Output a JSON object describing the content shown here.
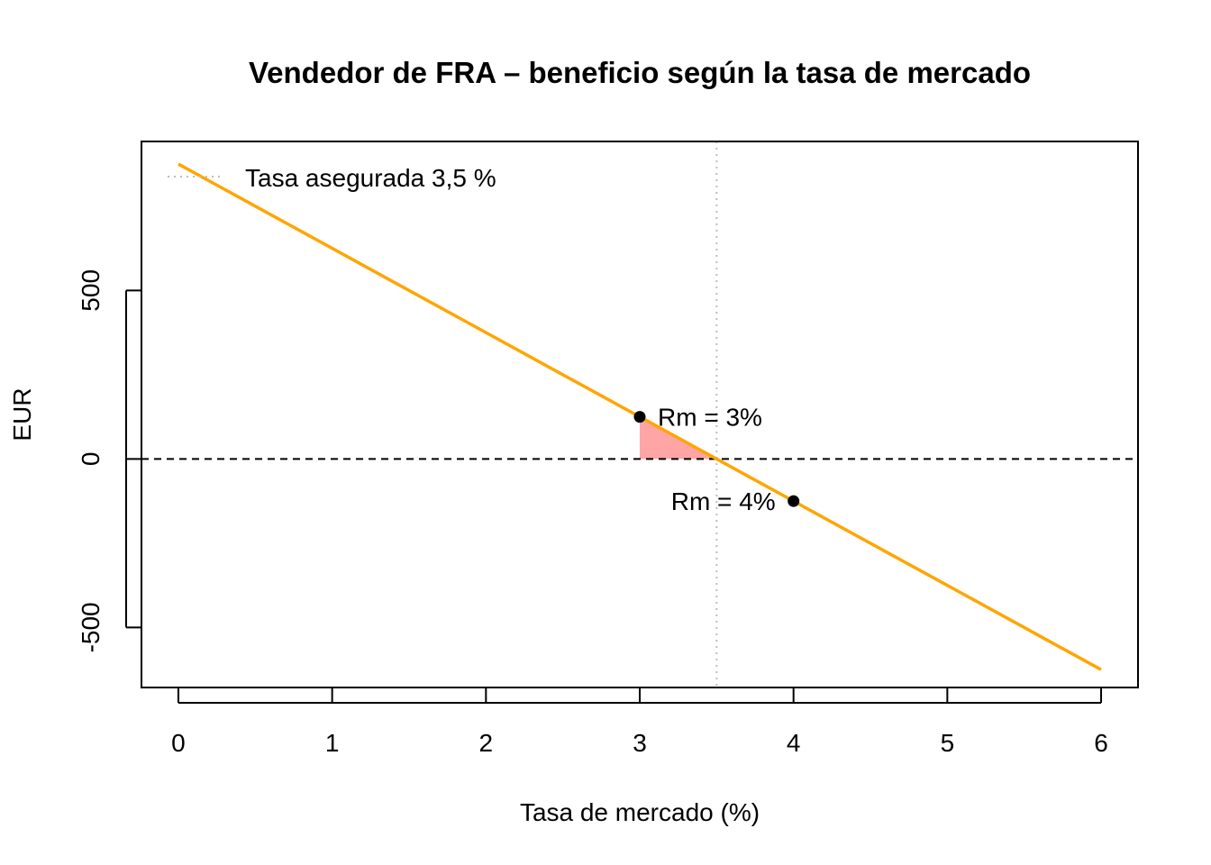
{
  "chart_data": {
    "type": "line",
    "title": "Vendedor de FRA – beneficio según la tasa de mercado",
    "xlabel": "Tasa de mercado (%)",
    "ylabel": "EUR",
    "xlim": [
      -0.24,
      6.24
    ],
    "ylim": [
      -678,
      942
    ],
    "xticks": [
      0,
      1,
      2,
      3,
      4,
      5,
      6
    ],
    "yticks": [
      -500,
      0,
      500
    ],
    "grid": false,
    "series": [
      {
        "color": "#FFA500",
        "x": [
          0,
          6
        ],
        "y": [
          875,
          -625
        ]
      }
    ],
    "reference_lines": {
      "horizontal_zero": {
        "y": 0,
        "style": "dashed",
        "color": "#000000"
      },
      "vertical_rate": {
        "x": 3.5,
        "style": "dotted",
        "color": "#BEBEBE"
      }
    },
    "shaded_region": {
      "x": [
        3,
        3.5
      ],
      "color": "#FFA5A5"
    },
    "points": [
      {
        "x": 3,
        "y": 125,
        "label": "Rm = 3%",
        "label_side": "right"
      },
      {
        "x": 4,
        "y": -125,
        "label": "Rm = 4%",
        "label_side": "left"
      }
    ],
    "legend": {
      "position": "top-left",
      "entries": [
        {
          "label": "Tasa asegurada 3,5 %",
          "style": "dotted",
          "color": "#BEBEBE"
        }
      ]
    }
  }
}
